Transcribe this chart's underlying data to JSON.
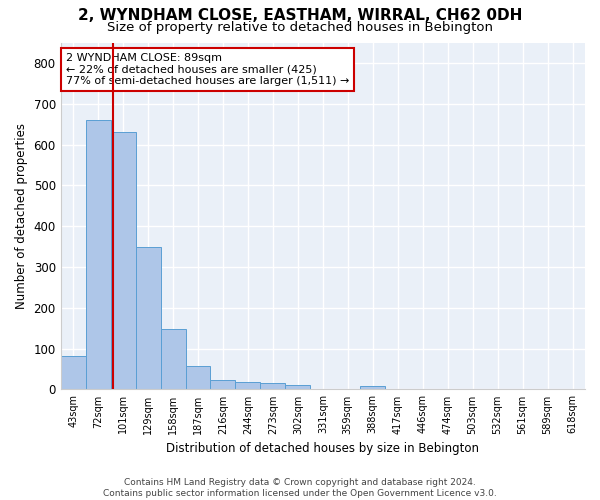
{
  "title": "2, WYNDHAM CLOSE, EASTHAM, WIRRAL, CH62 0DH",
  "subtitle": "Size of property relative to detached houses in Bebington",
  "xlabel": "Distribution of detached houses by size in Bebington",
  "ylabel": "Number of detached properties",
  "footer_line1": "Contains HM Land Registry data © Crown copyright and database right 2024.",
  "footer_line2": "Contains public sector information licensed under the Open Government Licence v3.0.",
  "bar_labels": [
    "43sqm",
    "72sqm",
    "101sqm",
    "129sqm",
    "158sqm",
    "187sqm",
    "216sqm",
    "244sqm",
    "273sqm",
    "302sqm",
    "331sqm",
    "359sqm",
    "388sqm",
    "417sqm",
    "446sqm",
    "474sqm",
    "503sqm",
    "532sqm",
    "561sqm",
    "589sqm",
    "618sqm"
  ],
  "bar_values": [
    83,
    660,
    630,
    348,
    148,
    57,
    22,
    19,
    15,
    10,
    0,
    0,
    8,
    0,
    0,
    0,
    0,
    0,
    0,
    0,
    0
  ],
  "bar_color": "#aec6e8",
  "bar_edge_color": "#5a9fd4",
  "property_line_label": "2 WYNDHAM CLOSE: 89sqm",
  "annotation_line1": "← 22% of detached houses are smaller (425)",
  "annotation_line2": "77% of semi-detached houses are larger (1,511) →",
  "annotation_box_color": "#cc0000",
  "ylim": [
    0,
    850
  ],
  "yticks": [
    0,
    100,
    200,
    300,
    400,
    500,
    600,
    700,
    800
  ],
  "bg_color": "#eaf0f8",
  "grid_color": "#ffffff",
  "title_fontsize": 11,
  "subtitle_fontsize": 9.5,
  "property_sqm": 89,
  "bin_starts": [
    43,
    72,
    101,
    129,
    158,
    187,
    216,
    244,
    273,
    302,
    331,
    359,
    388,
    417,
    446,
    474,
    503,
    532,
    561,
    589,
    618
  ]
}
